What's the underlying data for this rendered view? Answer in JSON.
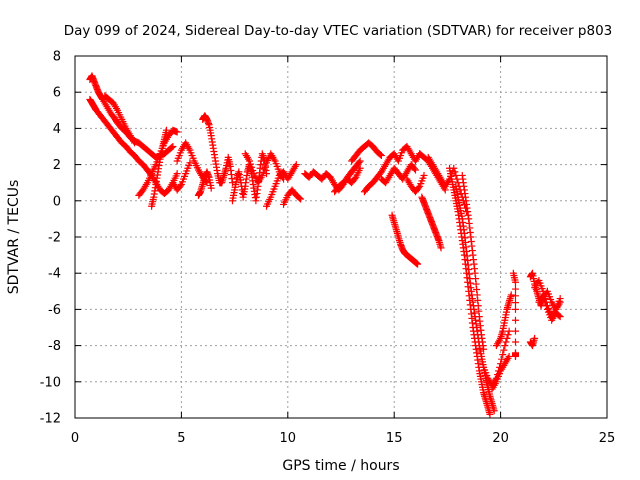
{
  "chart_data": {
    "type": "scatter",
    "title": "Day 099 of 2024, Sidereal Day-to-day VTEC variation (SDTVAR) for receiver p803",
    "xlabel": "GPS time / hours",
    "ylabel": "SDTVAR / TECUs",
    "xlim": [
      0,
      25
    ],
    "ylim": [
      -12,
      8
    ],
    "xticks": [
      0,
      5,
      10,
      15,
      20,
      25
    ],
    "yticks": [
      8,
      6,
      4,
      2,
      0,
      -2,
      -4,
      -6,
      -8,
      -10,
      -12
    ],
    "grid": true,
    "marker": "plus",
    "series": [
      {
        "name": "SDTVAR",
        "color": "#ff0000",
        "segments": [
          {
            "x": [
              0.7,
              0.8,
              0.9,
              1.0,
              1.1,
              1.2,
              1.3,
              1.5,
              1.7,
              1.9,
              2.0,
              2.2,
              2.4,
              2.6,
              2.8,
              3.0,
              3.2,
              3.4,
              3.6,
              3.8,
              4.0,
              4.2,
              4.4,
              4.6
            ],
            "y": [
              6.7,
              6.9,
              6.6,
              6.3,
              6.0,
              5.8,
              5.6,
              5.2,
              4.8,
              4.5,
              4.3,
              4.0,
              3.8,
              3.5,
              3.3,
              3.2,
              3.0,
              2.8,
              2.6,
              2.4,
              2.5,
              2.6,
              2.8,
              3.0
            ]
          },
          {
            "x": [
              0.7,
              0.8,
              0.9,
              1.0,
              1.2,
              1.4,
              1.6,
              1.8,
              2.0,
              2.2,
              2.4,
              2.6,
              2.8,
              3.0,
              3.2,
              3.4,
              3.6,
              3.8,
              4.0,
              4.2,
              4.4,
              4.6,
              4.8
            ],
            "y": [
              5.6,
              5.4,
              5.2,
              5.0,
              4.7,
              4.4,
              4.1,
              3.8,
              3.5,
              3.2,
              3.0,
              2.7,
              2.5,
              2.2,
              2.0,
              1.7,
              1.4,
              1.0,
              0.6,
              0.4,
              0.6,
              1.0,
              1.5
            ]
          },
          {
            "x": [
              1.4,
              1.6,
              1.8,
              2.0,
              2.2,
              2.4,
              2.6,
              2.8
            ],
            "y": [
              5.8,
              5.6,
              5.4,
              5.0,
              4.5,
              4.0,
              3.6,
              3.2
            ]
          },
          {
            "x": [
              3.0,
              3.2,
              3.4,
              3.6,
              3.8,
              4.0,
              4.2,
              4.4,
              4.6,
              4.8
            ],
            "y": [
              0.3,
              0.6,
              1.0,
              1.5,
              2.0,
              2.6,
              3.2,
              3.6,
              3.9,
              3.8
            ]
          },
          {
            "x": [
              3.6,
              3.7,
              3.8,
              3.9,
              4.0,
              4.1,
              4.2,
              4.3
            ],
            "y": [
              -0.3,
              0.2,
              0.9,
              1.6,
              2.3,
              2.9,
              3.4,
              3.9
            ]
          },
          {
            "x": [
              4.8,
              5.0,
              5.2,
              5.4,
              5.6,
              5.8,
              6.0,
              6.2
            ],
            "y": [
              2.2,
              2.8,
              3.2,
              2.8,
              2.2,
              1.7,
              1.3,
              1.0
            ]
          },
          {
            "x": [
              4.6,
              4.8,
              5.0,
              5.2,
              5.4
            ],
            "y": [
              1.0,
              0.6,
              0.9,
              1.5,
              2.1
            ]
          },
          {
            "x": [
              6.0,
              6.1,
              6.2,
              6.3,
              6.4,
              6.5,
              6.6,
              6.7,
              6.8,
              6.9,
              7.0,
              7.1,
              7.2,
              7.3,
              7.4
            ],
            "y": [
              4.5,
              4.7,
              4.5,
              4.2,
              3.6,
              2.9,
              2.2,
              1.5,
              1.0,
              1.0,
              1.4,
              1.8,
              2.4,
              1.9,
              1.0
            ]
          },
          {
            "x": [
              5.8,
              5.9,
              6.0,
              6.1,
              6.2,
              6.3,
              6.4
            ],
            "y": [
              0.3,
              0.5,
              0.9,
              1.3,
              1.6,
              1.3,
              0.7
            ]
          },
          {
            "x": [
              7.4,
              7.5,
              7.6,
              7.7,
              7.8,
              7.9,
              8.0,
              8.1,
              8.2,
              8.3,
              8.4,
              8.5,
              8.6,
              8.7,
              8.8,
              8.9,
              9.0
            ],
            "y": [
              0.0,
              0.6,
              1.2,
              1.6,
              1.0,
              0.2,
              0.8,
              1.6,
              2.0,
              1.5,
              0.7,
              0.0,
              0.8,
              1.8,
              2.6,
              2.2,
              1.5
            ]
          },
          {
            "x": [
              8.0,
              8.2,
              8.4,
              8.6,
              8.8,
              9.0,
              9.2,
              9.4,
              9.6,
              9.8
            ],
            "y": [
              2.6,
              2.2,
              1.5,
              1.0,
              1.4,
              2.1,
              2.6,
              2.2,
              1.6,
              1.2
            ]
          },
          {
            "x": [
              9.0,
              9.2,
              9.4,
              9.6,
              9.8,
              10.0,
              10.2,
              10.4
            ],
            "y": [
              -0.3,
              0.2,
              0.8,
              1.4,
              1.6,
              1.2,
              1.6,
              2.0
            ]
          },
          {
            "x": [
              9.8,
              10.0,
              10.2,
              10.4,
              10.6
            ],
            "y": [
              -0.2,
              0.3,
              0.6,
              0.3,
              0.1
            ]
          },
          {
            "x": [
              10.8,
              11.0,
              11.2,
              11.4,
              11.6,
              11.8,
              12.0,
              12.2,
              12.4,
              12.6,
              12.8,
              13.0,
              13.2,
              13.4
            ],
            "y": [
              1.5,
              1.3,
              1.6,
              1.4,
              1.2,
              1.5,
              1.3,
              0.9,
              0.6,
              0.9,
              1.3,
              1.6,
              1.9,
              2.2
            ]
          },
          {
            "x": [
              12.2,
              12.4,
              12.6,
              12.8,
              13.0,
              13.2,
              13.4
            ],
            "y": [
              0.5,
              0.8,
              1.0,
              1.2,
              1.0,
              1.3,
              1.8
            ]
          },
          {
            "x": [
              13.0,
              13.2,
              13.4,
              13.6,
              13.8,
              14.0,
              14.2,
              14.4
            ],
            "y": [
              2.2,
              2.5,
              2.8,
              3.0,
              3.2,
              3.0,
              2.7,
              2.5
            ]
          },
          {
            "x": [
              13.6,
              13.8,
              14.0,
              14.2,
              14.4,
              14.6,
              14.8,
              15.0,
              15.2,
              15.4,
              15.6,
              15.8,
              16.0,
              16.2
            ],
            "y": [
              0.5,
              0.8,
              1.0,
              1.3,
              1.6,
              2.0,
              2.4,
              2.6,
              2.2,
              2.8,
              3.0,
              2.6,
              2.2,
              2.6
            ]
          },
          {
            "x": [
              14.4,
              14.6,
              14.8,
              15.0,
              15.2,
              15.4,
              15.6,
              15.8,
              16.0
            ],
            "y": [
              1.2,
              1.0,
              1.4,
              1.8,
              1.5,
              1.2,
              1.6,
              2.0,
              1.7
            ]
          },
          {
            "x": [
              15.6,
              15.8,
              16.0,
              16.2,
              16.4
            ],
            "y": [
              1.2,
              0.8,
              0.5,
              0.8,
              1.4
            ]
          },
          {
            "x": [
              14.9,
              15.0,
              15.1,
              15.2,
              15.3,
              15.4,
              15.5,
              15.6,
              15.7,
              15.8,
              15.9,
              16.0,
              16.1
            ],
            "y": [
              -0.8,
              -1.2,
              -1.6,
              -2.0,
              -2.4,
              -2.7,
              -2.9,
              -3.0,
              -3.1,
              -3.2,
              -3.3,
              -3.4,
              -3.5
            ]
          },
          {
            "x": [
              16.2,
              16.4,
              16.6,
              16.8,
              17.0,
              17.2,
              17.4
            ],
            "y": [
              2.6,
              2.4,
              2.2,
              1.8,
              1.4,
              1.0,
              0.6
            ]
          },
          {
            "x": [
              16.3,
              16.4,
              16.5,
              16.6,
              16.7,
              16.8,
              16.9,
              17.0,
              17.1,
              17.2
            ],
            "y": [
              0.2,
              -0.1,
              -0.4,
              -0.7,
              -1.0,
              -1.3,
              -1.6,
              -1.9,
              -2.2,
              -2.6
            ]
          },
          {
            "x": [
              16.6,
              16.8,
              17.0,
              17.2,
              17.4,
              17.6,
              17.8,
              18.0,
              18.2,
              18.4
            ],
            "y": [
              2.4,
              2.0,
              1.6,
              1.2,
              0.8,
              1.2,
              1.8,
              1.0,
              0.2,
              -0.6
            ]
          },
          {
            "x": [
              17.6,
              17.7,
              17.8,
              17.9,
              18.0,
              18.1,
              18.2,
              18.3,
              18.4,
              18.5,
              18.6,
              18.7,
              18.8,
              18.9,
              19.0,
              19.1,
              19.2,
              19.3,
              19.4,
              19.5
            ],
            "y": [
              1.8,
              1.2,
              0.6,
              0.0,
              -0.6,
              -1.4,
              -2.2,
              -3.0,
              -4.0,
              -5.0,
              -6.0,
              -7.0,
              -7.8,
              -8.6,
              -9.4,
              -10.0,
              -10.6,
              -11.0,
              -11.4,
              -11.8
            ]
          },
          {
            "x": [
              17.9,
              18.0,
              18.1,
              18.2,
              18.3,
              18.4,
              18.5,
              18.6,
              18.7,
              18.8,
              18.9,
              19.0,
              19.1,
              19.2,
              19.3,
              19.4,
              19.5,
              19.6,
              19.7
            ],
            "y": [
              0.8,
              0.2,
              -0.4,
              -1.0,
              -1.8,
              -2.8,
              -3.8,
              -4.8,
              -5.6,
              -6.4,
              -7.2,
              -8.0,
              -8.6,
              -9.2,
              -9.8,
              -10.3,
              -10.8,
              -11.2,
              -11.6
            ]
          },
          {
            "x": [
              18.2,
              18.3,
              18.4,
              18.5,
              18.6,
              18.7,
              18.8,
              18.9,
              19.0,
              19.1,
              19.2
            ],
            "y": [
              1.4,
              0.6,
              -0.2,
              -1.0,
              -2.0,
              -3.0,
              -4.0,
              -5.2,
              -6.4,
              -7.4,
              -8.2
            ]
          },
          {
            "x": [
              19.2,
              19.4,
              19.6,
              19.8,
              20.0,
              20.2,
              20.4
            ],
            "y": [
              -9.2,
              -9.8,
              -10.2,
              -9.8,
              -9.0,
              -8.0,
              -7.2
            ]
          },
          {
            "x": [
              19.6,
              19.8,
              20.0,
              20.2,
              20.4
            ],
            "y": [
              -10.4,
              -10.0,
              -9.4,
              -9.0,
              -8.6
            ]
          },
          {
            "x": [
              19.8,
              20.0,
              20.1,
              20.2,
              20.3,
              20.4,
              20.5
            ],
            "y": [
              -8.0,
              -7.6,
              -7.2,
              -6.6,
              -6.0,
              -5.6,
              -5.2
            ]
          },
          {
            "x": [
              20.6,
              20.7,
              20.7,
              20.7,
              20.7
            ],
            "y": [
              -4.0,
              -4.5,
              -6.0,
              -8.4,
              -8.6
            ]
          },
          {
            "x": [
              21.4,
              21.5,
              21.6,
              21.7,
              21.8,
              21.9,
              22.0,
              22.2,
              22.4,
              22.6,
              22.8
            ],
            "y": [
              -4.2,
              -4.0,
              -4.6,
              -5.0,
              -5.4,
              -5.8,
              -5.4,
              -5.0,
              -5.6,
              -6.0,
              -5.4
            ]
          },
          {
            "x": [
              21.6,
              21.8,
              22.0,
              22.2,
              22.4,
              22.6,
              22.8
            ],
            "y": [
              -4.8,
              -4.4,
              -5.0,
              -5.8,
              -6.4,
              -6.0,
              -5.6
            ]
          },
          {
            "x": [
              21.8,
              22.0,
              22.2,
              22.4,
              22.6,
              22.8
            ],
            "y": [
              -5.6,
              -5.2,
              -6.0,
              -6.6,
              -6.2,
              -6.4
            ]
          },
          {
            "x": [
              21.4,
              21.5,
              21.6
            ],
            "y": [
              -7.8,
              -8.0,
              -7.6
            ]
          }
        ]
      }
    ]
  }
}
